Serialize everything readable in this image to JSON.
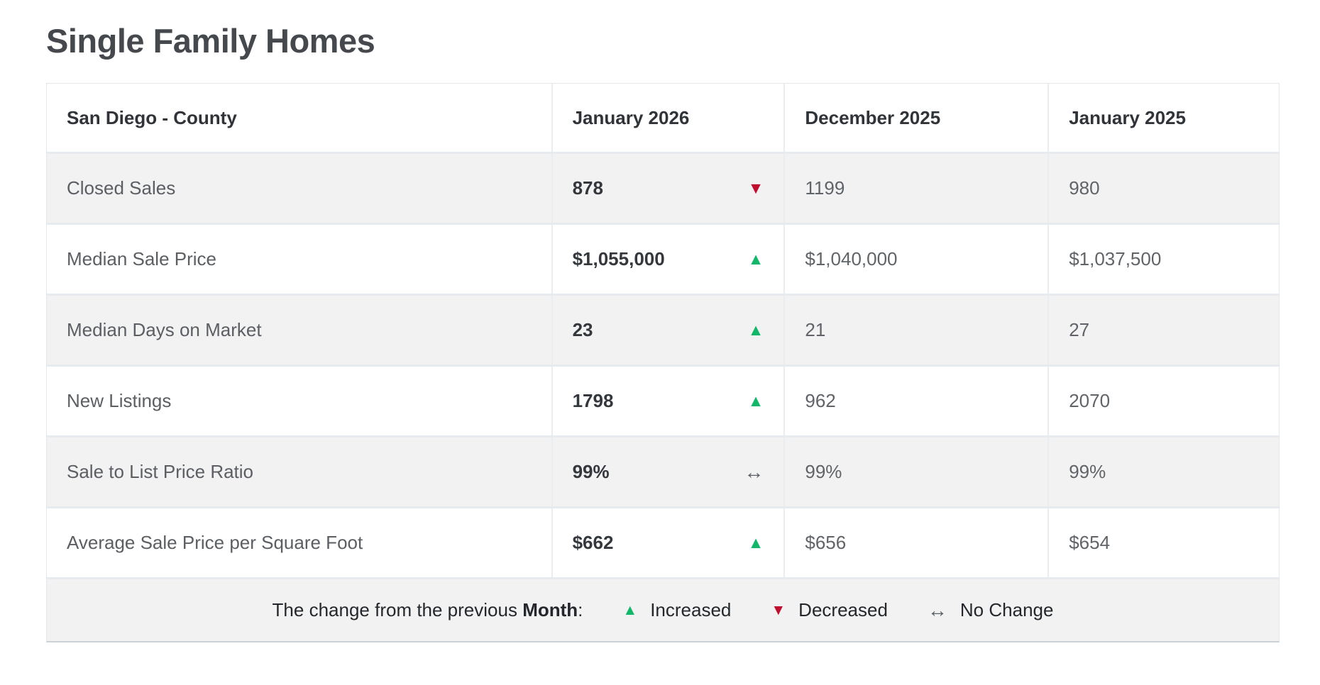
{
  "page": {
    "title": "Single Family Homes"
  },
  "table": {
    "header": {
      "region": "San Diego - County",
      "periods": [
        "January 2026",
        "December 2025",
        "January 2025"
      ]
    },
    "rows": [
      {
        "label": "Closed Sales",
        "current": "878",
        "trend": "down",
        "prev_month": "1199",
        "prev_year": "980"
      },
      {
        "label": "Median Sale Price",
        "current": "$1,055,000",
        "trend": "up",
        "prev_month": "$1,040,000",
        "prev_year": "$1,037,500"
      },
      {
        "label": "Median Days on Market",
        "current": "23",
        "trend": "up",
        "prev_month": "21",
        "prev_year": "27"
      },
      {
        "label": "New Listings",
        "current": "1798",
        "trend": "up",
        "prev_month": "962",
        "prev_year": "2070"
      },
      {
        "label": "Sale to List Price Ratio",
        "current": "99%",
        "trend": "none",
        "prev_month": "99%",
        "prev_year": "99%"
      },
      {
        "label": "Average Sale Price per Square Foot",
        "current": "$662",
        "trend": "up",
        "prev_month": "$656",
        "prev_year": "$654"
      }
    ],
    "footer": {
      "prefix": "The change from the previous ",
      "bold_word": "Month",
      "suffix": ":",
      "legend": [
        {
          "icon": "up-triangle",
          "label": "Increased"
        },
        {
          "icon": "down-triangle",
          "label": "Decreased"
        },
        {
          "icon": "no-change-arrow",
          "label": "No Change"
        }
      ]
    }
  },
  "icons": {
    "up": "▲",
    "down": "▼",
    "none": "↔"
  },
  "colors": {
    "increase": "#12b76a",
    "decrease": "#c00f2e",
    "no_change": "#5b5f63",
    "row_alt_bg": "#f2f2f3",
    "title_text": "#45494e"
  },
  "chart_data": {
    "type": "table",
    "title": "Single Family Homes",
    "region": "San Diego - County",
    "columns": [
      "San Diego - County",
      "January 2026",
      "December 2025",
      "January 2025"
    ],
    "rows": [
      [
        "Closed Sales",
        878,
        1199,
        980
      ],
      [
        "Median Sale Price",
        1055000,
        1040000,
        1037500
      ],
      [
        "Median Days on Market",
        23,
        21,
        27
      ],
      [
        "New Listings",
        1798,
        962,
        2070
      ],
      [
        "Sale to List Price Ratio",
        "99%",
        "99%",
        "99%"
      ],
      [
        "Average Sale Price per Square Foot",
        662,
        656,
        654
      ]
    ],
    "month_over_month_change": [
      "decreased",
      "increased",
      "increased",
      "increased",
      "no-change",
      "increased"
    ],
    "legend": "The change from the previous Month: ▲ Increased ▼ Decreased ↔ No Change"
  }
}
